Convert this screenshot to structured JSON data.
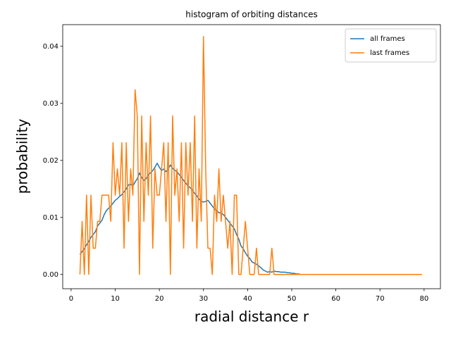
{
  "chart_data": {
    "type": "line",
    "title": "histogram of orbiting distances",
    "x_label": "radial distance r",
    "y_label": "probability",
    "x": [
      2.0,
      2.5,
      3.0,
      3.5,
      4.0,
      4.5,
      5.0,
      5.5,
      6.0,
      6.5,
      7.0,
      7.5,
      8.0,
      8.5,
      9.0,
      9.5,
      10.0,
      10.5,
      11.0,
      11.5,
      12.0,
      12.5,
      13.0,
      13.5,
      14.0,
      14.5,
      15.0,
      15.5,
      16.0,
      16.5,
      17.0,
      17.5,
      18.0,
      18.5,
      19.0,
      19.5,
      20.0,
      20.5,
      21.0,
      21.5,
      22.0,
      22.5,
      23.0,
      23.5,
      24.0,
      24.5,
      25.0,
      25.5,
      26.0,
      26.5,
      27.0,
      27.5,
      28.0,
      28.5,
      29.0,
      29.5,
      30.0,
      30.5,
      31.0,
      31.5,
      32.0,
      32.5,
      33.0,
      33.5,
      34.0,
      34.5,
      35.0,
      35.5,
      36.0,
      36.5,
      37.0,
      37.5,
      38.0,
      38.5,
      39.0,
      39.5,
      40.0,
      40.5,
      41.0,
      41.5,
      42.0,
      42.5,
      43.0,
      43.5,
      44.0,
      44.5,
      45.0,
      45.5,
      46.0,
      46.5,
      47.0,
      47.5,
      48.0,
      48.5,
      49.0,
      49.5,
      50.0,
      50.5,
      51.0,
      51.5,
      52.0,
      55,
      60,
      65,
      70,
      75,
      79.5
    ],
    "series": [
      {
        "name": "all frames",
        "color": "#1f77b4",
        "values": [
          0.0035,
          0.004,
          0.0045,
          0.0052,
          0.0058,
          0.0065,
          0.007,
          0.0075,
          0.0085,
          0.009,
          0.0095,
          0.0105,
          0.0112,
          0.0116,
          0.012,
          0.0125,
          0.013,
          0.0133,
          0.0137,
          0.014,
          0.0145,
          0.015,
          0.0157,
          0.0158,
          0.0155,
          0.0162,
          0.0168,
          0.0178,
          0.017,
          0.0165,
          0.0168,
          0.0175,
          0.0178,
          0.0182,
          0.0188,
          0.0195,
          0.0188,
          0.0182,
          0.0185,
          0.018,
          0.0185,
          0.0192,
          0.0186,
          0.0183,
          0.018,
          0.0175,
          0.017,
          0.0165,
          0.016,
          0.0155,
          0.0152,
          0.0148,
          0.0142,
          0.0138,
          0.0132,
          0.0128,
          0.0127,
          0.0128,
          0.013,
          0.0125,
          0.012,
          0.0115,
          0.0112,
          0.0108,
          0.0108,
          0.0105,
          0.01,
          0.0095,
          0.009,
          0.0085,
          0.008,
          0.007,
          0.0062,
          0.005,
          0.0045,
          0.0038,
          0.0032,
          0.0028,
          0.0022,
          0.002,
          0.0018,
          0.0015,
          0.0012,
          0.0008,
          0.0006,
          0.0004,
          0.0005,
          0.0004,
          0.0006,
          0.0005,
          0.0005,
          0.0004,
          0.0004,
          0.0004,
          0.0003,
          0.0003,
          0.0002,
          0.0002,
          0.0001,
          0.0001,
          0,
          0,
          0,
          0,
          0,
          0,
          0
        ]
      },
      {
        "name": "last frames",
        "color": "#ff7f0e",
        "values": [
          0,
          0.0093,
          0,
          0.0139,
          0,
          0.0139,
          0.0046,
          0.0046,
          0.0093,
          0.0093,
          0.0139,
          0.0139,
          0.0139,
          0.0139,
          0.0093,
          0.0231,
          0.0139,
          0.0185,
          0.0139,
          0.0231,
          0.0046,
          0.0231,
          0.0093,
          0.0185,
          0.0139,
          0.0324,
          0.0278,
          0,
          0.0278,
          0.0093,
          0.0231,
          0.0139,
          0.0278,
          0.0046,
          0.0185,
          0.0139,
          0.0139,
          0.0185,
          0.0231,
          0.0093,
          0.0231,
          0,
          0.0278,
          0.0139,
          0.0185,
          0.0093,
          0.0231,
          0.0046,
          0.0231,
          0.0139,
          0.0231,
          0.0093,
          0.0278,
          0.0046,
          0.0185,
          0.0093,
          0.0417,
          0.0185,
          0.0046,
          0.0046,
          0,
          0.0139,
          0.0093,
          0.0185,
          0.0093,
          0.0139,
          0.0093,
          0.0046,
          0.0093,
          0,
          0.0139,
          0.0139,
          0,
          0,
          0.0046,
          0.0093,
          0.0046,
          0,
          0,
          0,
          0.0046,
          0,
          0,
          0,
          0,
          0,
          0,
          0.0046,
          0,
          0,
          0,
          0,
          0,
          0,
          0,
          0,
          0,
          0,
          0,
          0,
          0,
          0,
          0,
          0,
          0,
          0,
          0
        ]
      }
    ],
    "xlim": [
      -1.9,
      83.7
    ],
    "ylim": [
      -0.0025,
      0.0438
    ],
    "xticks": [
      0,
      10,
      20,
      30,
      40,
      50,
      60,
      70,
      80
    ],
    "yticks": [
      {
        "value": 0,
        "label": "0.00"
      },
      0.01,
      0.02,
      0.03,
      0.04
    ],
    "legend": "upper right"
  }
}
